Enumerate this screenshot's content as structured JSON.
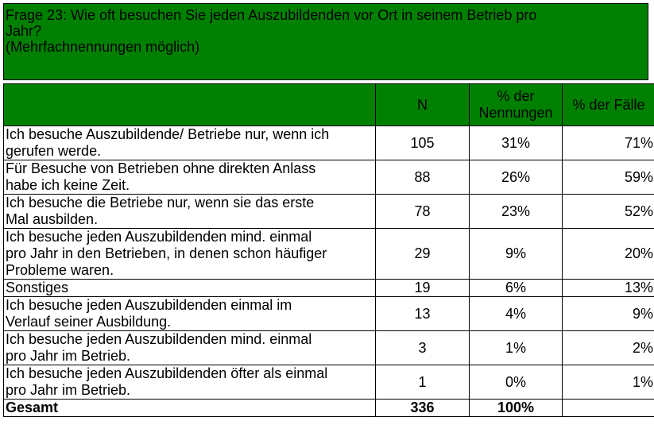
{
  "question": {
    "line1": "Frage 23: Wie oft besuchen Sie jeden Auszubildenden vor Ort in seinem Betrieb pro",
    "line2": "Jahr?",
    "line3": "(Mehrfachnennungen möglich)"
  },
  "columns": {
    "n": "N",
    "pct_mentions_1": "% der",
    "pct_mentions_2": "Nennungen",
    "pct_cases": "% der Fälle"
  },
  "rows": [
    {
      "lines": [
        "Ich besuche Auszubildende/ Betriebe nur, wenn ich",
        "gerufen werde."
      ],
      "n": "105",
      "pct_mentions": "31%",
      "pct_cases": "71%"
    },
    {
      "lines": [
        "Für Besuche von Betrieben ohne direkten Anlass",
        "habe ich keine Zeit."
      ],
      "n": "88",
      "pct_mentions": "26%",
      "pct_cases": "59%"
    },
    {
      "lines": [
        "Ich besuche die Betriebe nur, wenn sie das erste",
        "Mal ausbilden."
      ],
      "n": "78",
      "pct_mentions": "23%",
      "pct_cases": "52%"
    },
    {
      "lines": [
        "Ich besuche jeden Auszubildenden mind. einmal",
        "pro Jahr in den Betrieben, in denen schon häufiger",
        "Probleme waren."
      ],
      "n": "29",
      "pct_mentions": "9%",
      "pct_cases": "20%"
    },
    {
      "lines": [
        "Sonstiges"
      ],
      "n": "19",
      "pct_mentions": "6%",
      "pct_cases": "13%"
    },
    {
      "lines": [
        "Ich besuche jeden Auszubildenden einmal im",
        "Verlauf seiner Ausbildung."
      ],
      "n": "13",
      "pct_mentions": "4%",
      "pct_cases": "9%"
    },
    {
      "lines": [
        "Ich besuche jeden Auszubildenden mind. einmal",
        "pro Jahr im Betrieb."
      ],
      "n": "3",
      "pct_mentions": "1%",
      "pct_cases": "2%"
    },
    {
      "lines": [
        "Ich besuche jeden Auszubildenden öfter als einmal",
        "pro Jahr im Betrieb."
      ],
      "n": "1",
      "pct_mentions": "0%",
      "pct_cases": "1%"
    }
  ],
  "total": {
    "label": "Gesamt",
    "n": "336",
    "pct_mentions": "100%",
    "pct_cases": ""
  },
  "colors": {
    "header_green": "#008000"
  }
}
